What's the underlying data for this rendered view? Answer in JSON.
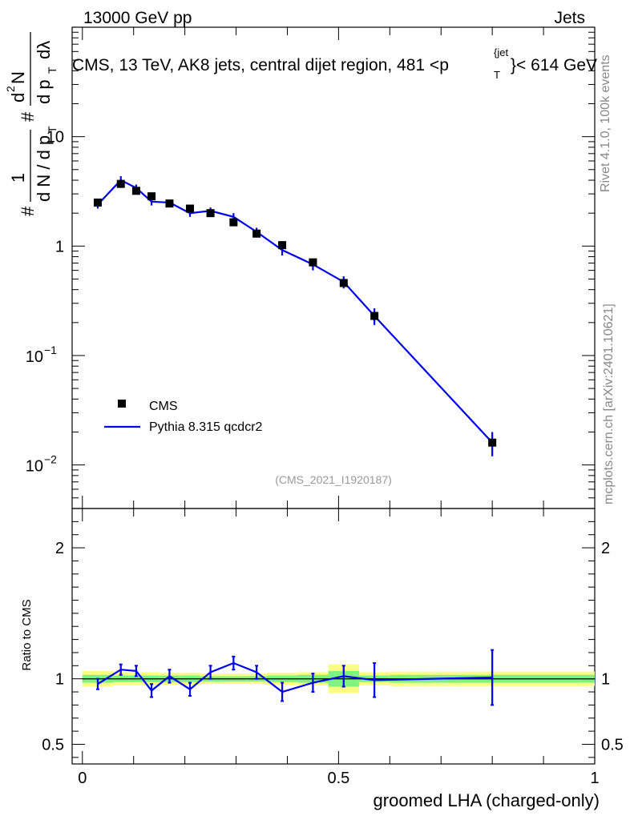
{
  "header": {
    "energy_label": "13000 GeV pp",
    "process_label": "Jets"
  },
  "side_labels": {
    "rivet": "Rivet 4.1.0,  100k events",
    "source": "mcplots.cern.ch [arXiv:2401.10621]"
  },
  "colors": {
    "data": "#000000",
    "mc": "#0000ee",
    "band_inner": "#7ff27f",
    "band_outer": "#fbfd85"
  },
  "chart_data": [
    {
      "type": "scatter",
      "panel": "main",
      "title": "CMS, 13 TeV, AK8 jets, central dijet region, 481 <p_T^{jet}> < 614 GeV",
      "title_parts": {
        "main": "CMS, 13 TeV, AK8 jets, central dijet region, 481 <p",
        "sup": "{jet",
        "sub": "T",
        "tail": "}< 614 GeV"
      },
      "ylabel_parts": {
        "num": "1",
        "den": "d N / d p",
        "frac2_num": "d",
        "frac2_den": "d p",
        "N_sup": "2",
        "lambda": "dλ",
        "hash": "#",
        "N": "N",
        "T": "T"
      },
      "yscale": "log",
      "ylim": [
        0.004,
        100
      ],
      "xlim": [
        -0.02,
        1.0
      ],
      "ytick_labels": [
        {
          "value": 10,
          "text": "10"
        },
        {
          "value": 1,
          "text": "1"
        },
        {
          "value": 0.1,
          "base": "10",
          "exp": "−1"
        },
        {
          "value": 0.01,
          "base": "10",
          "exp": "−2"
        }
      ],
      "annotation": "(CMS_2021_I1920187)",
      "legend": [
        {
          "label": "CMS",
          "style": "marker"
        },
        {
          "label": "Pythia 8.315 qcdcr2",
          "style": "line"
        }
      ],
      "legend_position": "lower-left",
      "series": [
        {
          "name": "CMS",
          "x": [
            0.03,
            0.075,
            0.105,
            0.135,
            0.17,
            0.21,
            0.25,
            0.295,
            0.34,
            0.39,
            0.45,
            0.51,
            0.57,
            0.8
          ],
          "values": [
            2.5,
            3.7,
            3.2,
            2.85,
            2.45,
            2.2,
            2.0,
            1.65,
            1.3,
            1.02,
            0.71,
            0.46,
            0.23,
            0.016
          ]
        },
        {
          "name": "Pythia 8.315 qcdcr2",
          "x": [
            0.03,
            0.075,
            0.105,
            0.135,
            0.17,
            0.21,
            0.25,
            0.295,
            0.34,
            0.39,
            0.45,
            0.51,
            0.57,
            0.8
          ],
          "values": [
            2.4,
            4.0,
            3.4,
            2.55,
            2.5,
            2.0,
            2.1,
            1.85,
            1.35,
            0.92,
            0.68,
            0.47,
            0.23,
            0.016
          ],
          "err": [
            0.2,
            0.35,
            0.25,
            0.2,
            0.15,
            0.15,
            0.15,
            0.15,
            0.12,
            0.1,
            0.08,
            0.06,
            0.04,
            0.004
          ]
        }
      ]
    },
    {
      "type": "line",
      "panel": "ratio",
      "ylabel": "Ratio to CMS",
      "xlabel": "groomed LHA (charged-only)",
      "xlim": [
        -0.02,
        1.0
      ],
      "ylim": [
        0.35,
        2.3
      ],
      "yticks": [
        0.5,
        1,
        2
      ],
      "ytick_labels": [
        "0.5",
        "1",
        "2"
      ],
      "xticks": [
        0,
        0.5,
        1
      ],
      "xtick_labels": [
        "0",
        "0.5",
        "1"
      ],
      "reference": 1,
      "ratio_band": {
        "edges": [
          0.0,
          0.06,
          0.09,
          0.12,
          0.15,
          0.19,
          0.23,
          0.27,
          0.32,
          0.36,
          0.42,
          0.48,
          0.54,
          0.6,
          1.0
        ],
        "inner": [
          0.03,
          0.025,
          0.025,
          0.025,
          0.025,
          0.025,
          0.02,
          0.02,
          0.02,
          0.025,
          0.03,
          0.06,
          0.025,
          0.03
        ],
        "outer": [
          0.06,
          0.05,
          0.05,
          0.05,
          0.045,
          0.045,
          0.04,
          0.04,
          0.04,
          0.045,
          0.05,
          0.11,
          0.05,
          0.055
        ]
      },
      "series": [
        {
          "name": "Pythia 8.315 qcdcr2",
          "x": [
            0.03,
            0.075,
            0.105,
            0.135,
            0.17,
            0.21,
            0.25,
            0.295,
            0.34,
            0.39,
            0.45,
            0.51,
            0.57,
            0.8
          ],
          "values": [
            0.96,
            1.07,
            1.06,
            0.91,
            1.02,
            0.92,
            1.05,
            1.12,
            1.05,
            0.9,
            0.97,
            1.02,
            0.99,
            1.01
          ],
          "err": [
            0.04,
            0.04,
            0.04,
            0.05,
            0.05,
            0.05,
            0.05,
            0.05,
            0.05,
            0.07,
            0.07,
            0.08,
            0.13,
            0.21
          ]
        }
      ]
    }
  ]
}
